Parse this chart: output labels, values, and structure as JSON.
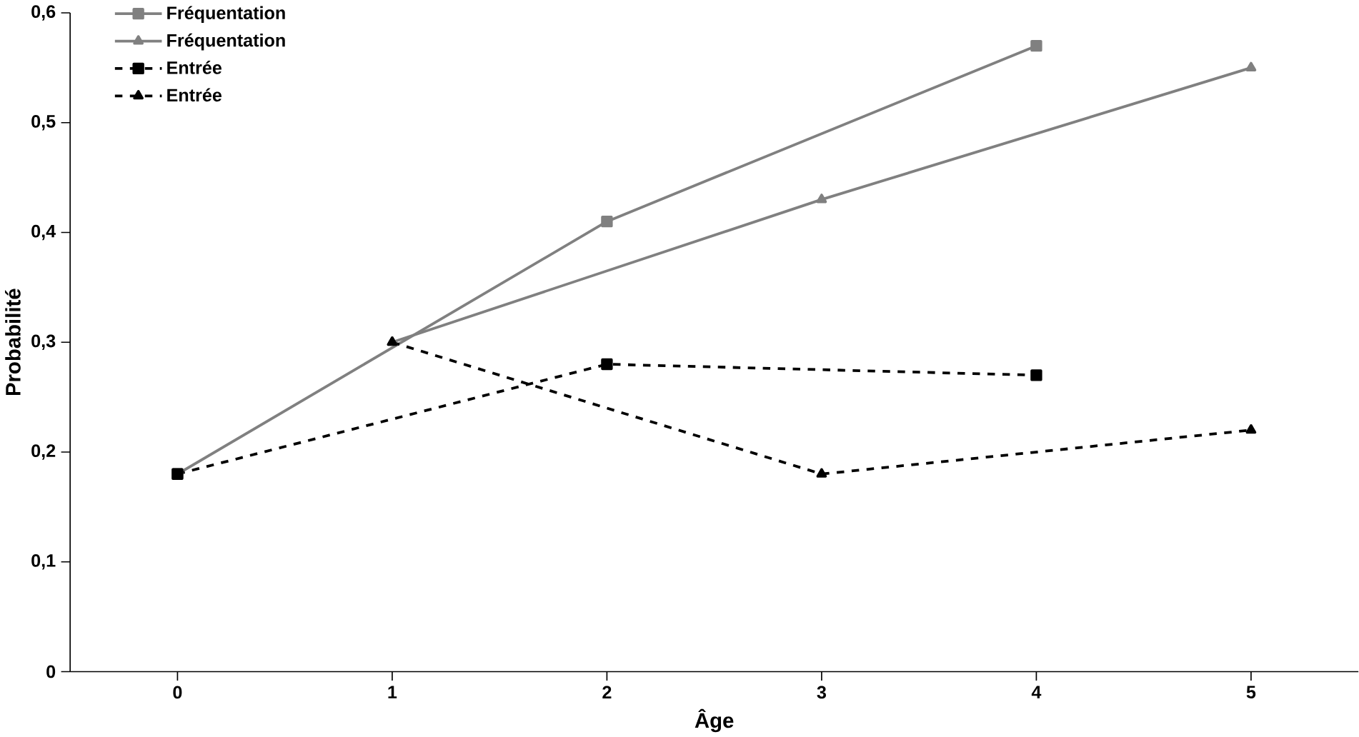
{
  "chart_data": {
    "type": "line",
    "xlabel": "Âge",
    "ylabel": "Probabilité",
    "xlim": [
      -0.5,
      5.5
    ],
    "xticks": [
      0,
      1,
      2,
      3,
      4,
      5
    ],
    "ylim": [
      0,
      0.6
    ],
    "yticks": [
      0,
      {
        "value": 0.1,
        "label": "0,1"
      },
      {
        "value": 0.2,
        "label": "0,2"
      },
      {
        "value": 0.3,
        "label": "0,3"
      },
      {
        "value": 0.4,
        "label": "0,4"
      },
      {
        "value": 0.5,
        "label": "0,5"
      },
      {
        "value": 0.6,
        "label": "0,6"
      }
    ],
    "grid": false,
    "legend": "top left",
    "series": [
      {
        "name": "Fréquentation",
        "color": "#808080",
        "x": [
          0,
          2,
          4
        ],
        "values": [
          0.18,
          0.41,
          0.57
        ],
        "marker": "square",
        "line_style": "solid"
      },
      {
        "name": "Fréquentation",
        "color": "#808080",
        "x": [
          1,
          3,
          5
        ],
        "values": [
          0.3,
          0.43,
          0.55
        ],
        "marker": "triangle",
        "line_style": "solid"
      },
      {
        "name": "Entrée",
        "color": "#000000",
        "x": [
          0,
          2,
          4
        ],
        "values": [
          0.18,
          0.28,
          0.27
        ],
        "marker": "square",
        "line_style": "dashed"
      },
      {
        "name": "Entrée",
        "color": "#000000",
        "x": [
          1,
          3,
          5
        ],
        "values": [
          0.3,
          0.18,
          0.22
        ],
        "marker": "triangle",
        "line_style": "dashed"
      }
    ]
  }
}
